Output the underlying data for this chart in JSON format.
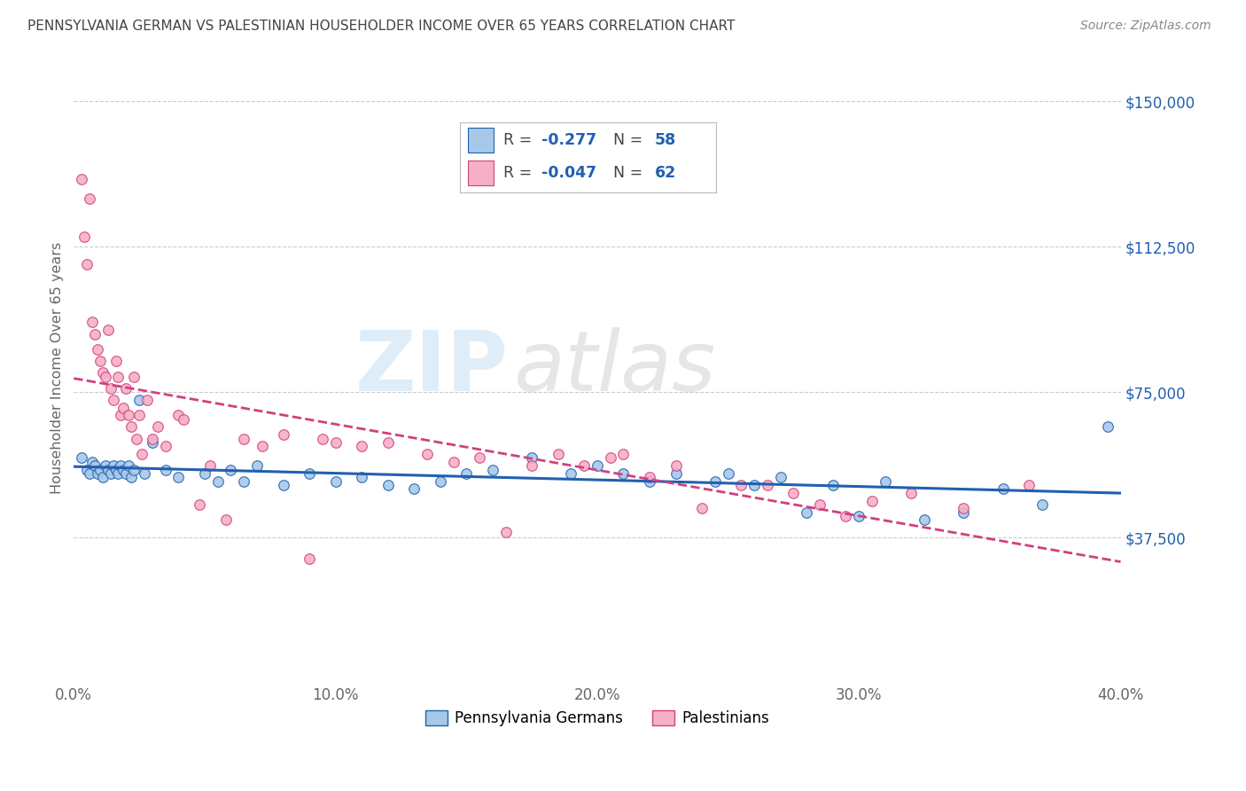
{
  "title": "PENNSYLVANIA GERMAN VS PALESTINIAN HOUSEHOLDER INCOME OVER 65 YEARS CORRELATION CHART",
  "source": "Source: ZipAtlas.com",
  "ylabel": "Householder Income Over 65 years",
  "xlabel_ticks": [
    "0.0%",
    "10.0%",
    "20.0%",
    "30.0%",
    "40.0%"
  ],
  "xlabel_vals": [
    0.0,
    10.0,
    20.0,
    30.0,
    40.0
  ],
  "ylim": [
    0,
    162500
  ],
  "xlim": [
    0.0,
    40.0
  ],
  "yticks": [
    0,
    37500,
    75000,
    112500,
    150000
  ],
  "ytick_labels": [
    "",
    "$37,500",
    "$75,000",
    "$112,500",
    "$150,000"
  ],
  "legend_R1_val": "-0.277",
  "legend_N1_val": "58",
  "legend_R2_val": "-0.047",
  "legend_N2_val": "62",
  "blue_color": "#a8c8e8",
  "pink_color": "#f5b0c5",
  "blue_line_color": "#2060b0",
  "pink_line_color": "#d04080",
  "label1": "Pennsylvania Germans",
  "label2": "Palestinians",
  "blue_x": [
    0.3,
    0.5,
    0.6,
    0.7,
    0.8,
    0.9,
    1.0,
    1.1,
    1.2,
    1.3,
    1.4,
    1.5,
    1.6,
    1.7,
    1.8,
    1.9,
    2.0,
    2.1,
    2.2,
    2.3,
    2.5,
    2.7,
    3.0,
    3.5,
    4.0,
    5.0,
    5.5,
    6.0,
    6.5,
    7.0,
    8.0,
    9.0,
    10.0,
    11.0,
    12.0,
    13.0,
    14.0,
    15.0,
    16.0,
    17.5,
    19.0,
    20.0,
    21.0,
    22.0,
    23.0,
    24.5,
    25.0,
    26.0,
    27.0,
    28.0,
    29.0,
    30.0,
    31.0,
    32.5,
    34.0,
    35.5,
    37.0,
    39.5
  ],
  "blue_y": [
    58000,
    55000,
    54000,
    57000,
    56000,
    54000,
    55000,
    53000,
    56000,
    55000,
    54000,
    56000,
    55000,
    54000,
    56000,
    55000,
    54000,
    56000,
    53000,
    55000,
    73000,
    54000,
    62000,
    55000,
    53000,
    54000,
    52000,
    55000,
    52000,
    56000,
    51000,
    54000,
    52000,
    53000,
    51000,
    50000,
    52000,
    54000,
    55000,
    58000,
    54000,
    56000,
    54000,
    52000,
    54000,
    52000,
    54000,
    51000,
    53000,
    44000,
    51000,
    43000,
    52000,
    42000,
    44000,
    50000,
    46000,
    66000
  ],
  "pink_x": [
    0.3,
    0.4,
    0.5,
    0.6,
    0.7,
    0.8,
    0.9,
    1.0,
    1.1,
    1.2,
    1.3,
    1.4,
    1.5,
    1.6,
    1.7,
    1.8,
    1.9,
    2.0,
    2.1,
    2.2,
    2.3,
    2.4,
    2.5,
    2.6,
    2.8,
    3.0,
    3.2,
    3.5,
    4.0,
    4.2,
    4.8,
    5.2,
    5.8,
    6.5,
    7.2,
    8.0,
    9.0,
    9.5,
    10.0,
    11.0,
    12.0,
    13.5,
    14.5,
    15.5,
    16.5,
    17.5,
    18.5,
    19.5,
    20.5,
    21.0,
    22.0,
    23.0,
    24.0,
    25.5,
    26.5,
    27.5,
    28.5,
    29.5,
    30.5,
    32.0,
    34.0,
    36.5
  ],
  "pink_y": [
    130000,
    115000,
    108000,
    125000,
    93000,
    90000,
    86000,
    83000,
    80000,
    79000,
    91000,
    76000,
    73000,
    83000,
    79000,
    69000,
    71000,
    76000,
    69000,
    66000,
    79000,
    63000,
    69000,
    59000,
    73000,
    63000,
    66000,
    61000,
    69000,
    68000,
    46000,
    56000,
    42000,
    63000,
    61000,
    64000,
    32000,
    63000,
    62000,
    61000,
    62000,
    59000,
    57000,
    58000,
    39000,
    56000,
    59000,
    56000,
    58000,
    59000,
    53000,
    56000,
    45000,
    51000,
    51000,
    49000,
    46000,
    43000,
    47000,
    49000,
    45000,
    51000
  ],
  "watermark_zip": "ZIP",
  "watermark_atlas": "atlas",
  "bg_color": "#ffffff",
  "grid_color": "#cccccc"
}
